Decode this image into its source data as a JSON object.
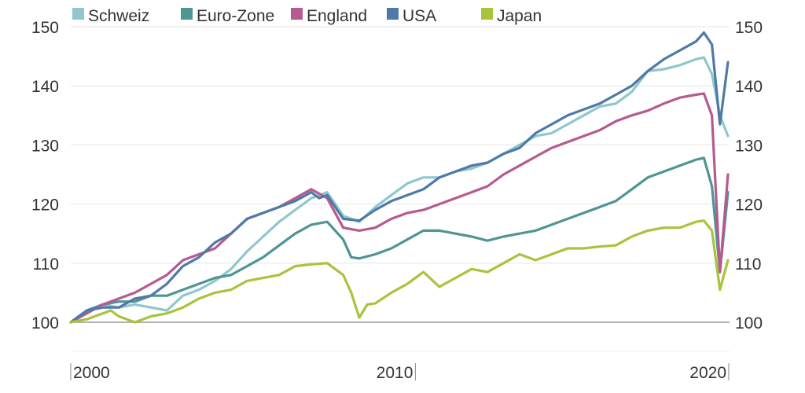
{
  "chart_data": {
    "type": "line",
    "title": "",
    "xlabel": "",
    "ylabel": "",
    "xlim": [
      2000,
      2020.5
    ],
    "ylim": [
      100,
      150
    ],
    "yticks": [
      100,
      110,
      120,
      130,
      140,
      150
    ],
    "xticks": [
      {
        "value": 2000,
        "label": "2000"
      },
      {
        "value": 2010,
        "label": "2010"
      },
      {
        "value": 2020,
        "label": "2020"
      }
    ],
    "grid": true,
    "legend_placement": "top",
    "series": [
      {
        "name": "Schweiz",
        "color": "#8fc7cc",
        "points": [
          [
            2000,
            100
          ],
          [
            2000.5,
            102
          ],
          [
            2001,
            103
          ],
          [
            2001.5,
            102.5
          ],
          [
            2002,
            103
          ],
          [
            2002.5,
            102.5
          ],
          [
            2003,
            102
          ],
          [
            2003.5,
            104.5
          ],
          [
            2004,
            105.5
          ],
          [
            2004.5,
            107
          ],
          [
            2005,
            109
          ],
          [
            2005.5,
            112
          ],
          [
            2006,
            114.5
          ],
          [
            2006.5,
            117
          ],
          [
            2007,
            119
          ],
          [
            2007.5,
            121
          ],
          [
            2008,
            122
          ],
          [
            2008.5,
            118
          ],
          [
            2009,
            117
          ],
          [
            2009.5,
            119.5
          ],
          [
            2010,
            121.5
          ],
          [
            2010.5,
            123.5
          ],
          [
            2011,
            124.5
          ],
          [
            2011.5,
            124.5
          ],
          [
            2012,
            125.5
          ],
          [
            2012.5,
            126
          ],
          [
            2013,
            127
          ],
          [
            2013.5,
            128.5
          ],
          [
            2014,
            130
          ],
          [
            2014.5,
            131.5
          ],
          [
            2015,
            132
          ],
          [
            2015.5,
            133.5
          ],
          [
            2016,
            135
          ],
          [
            2016.5,
            136.5
          ],
          [
            2017,
            137
          ],
          [
            2017.5,
            139
          ],
          [
            2018,
            142.5
          ],
          [
            2018.5,
            142.8
          ],
          [
            2019,
            143.5
          ],
          [
            2019.5,
            144.5
          ],
          [
            2019.75,
            144.8
          ],
          [
            2020,
            142
          ],
          [
            2020.25,
            135
          ],
          [
            2020.5,
            131.5
          ]
        ]
      },
      {
        "name": "Euro-Zone",
        "color": "#4e9593",
        "points": [
          [
            2000,
            100
          ],
          [
            2000.5,
            102
          ],
          [
            2001,
            103
          ],
          [
            2001.5,
            103.5
          ],
          [
            2002,
            103.5
          ],
          [
            2002.5,
            104.5
          ],
          [
            2003,
            104.5
          ],
          [
            2003.5,
            105.5
          ],
          [
            2004,
            106.5
          ],
          [
            2004.5,
            107.5
          ],
          [
            2005,
            108
          ],
          [
            2005.5,
            109.5
          ],
          [
            2006,
            111
          ],
          [
            2006.5,
            113
          ],
          [
            2007,
            115
          ],
          [
            2007.5,
            116.5
          ],
          [
            2008,
            117
          ],
          [
            2008.5,
            114
          ],
          [
            2008.75,
            111
          ],
          [
            2009,
            110.8
          ],
          [
            2009.5,
            111.5
          ],
          [
            2010,
            112.5
          ],
          [
            2010.5,
            114
          ],
          [
            2011,
            115.5
          ],
          [
            2011.5,
            115.5
          ],
          [
            2012,
            115
          ],
          [
            2012.5,
            114.5
          ],
          [
            2013,
            113.8
          ],
          [
            2013.5,
            114.5
          ],
          [
            2014,
            115
          ],
          [
            2014.5,
            115.5
          ],
          [
            2015,
            116.5
          ],
          [
            2015.5,
            117.5
          ],
          [
            2016,
            118.5
          ],
          [
            2016.5,
            119.5
          ],
          [
            2017,
            120.5
          ],
          [
            2017.5,
            122.5
          ],
          [
            2018,
            124.5
          ],
          [
            2018.5,
            125.5
          ],
          [
            2019,
            126.5
          ],
          [
            2019.5,
            127.5
          ],
          [
            2019.75,
            127.8
          ],
          [
            2020,
            123
          ],
          [
            2020.25,
            108.5
          ],
          [
            2020.5,
            122
          ]
        ]
      },
      {
        "name": "England",
        "color": "#b65a8f",
        "points": [
          [
            2000,
            100
          ],
          [
            2000.5,
            101.5
          ],
          [
            2001,
            103
          ],
          [
            2001.5,
            104
          ],
          [
            2002,
            105
          ],
          [
            2002.5,
            106.5
          ],
          [
            2003,
            108
          ],
          [
            2003.5,
            110.5
          ],
          [
            2004,
            111.5
          ],
          [
            2004.5,
            112.5
          ],
          [
            2005,
            115
          ],
          [
            2005.5,
            117.5
          ],
          [
            2006,
            118.5
          ],
          [
            2006.5,
            119.5
          ],
          [
            2007,
            121
          ],
          [
            2007.5,
            122.5
          ],
          [
            2008,
            121
          ],
          [
            2008.5,
            116
          ],
          [
            2009,
            115.5
          ],
          [
            2009.5,
            116
          ],
          [
            2010,
            117.5
          ],
          [
            2010.5,
            118.5
          ],
          [
            2011,
            119
          ],
          [
            2011.5,
            120
          ],
          [
            2012,
            121
          ],
          [
            2012.5,
            122
          ],
          [
            2013,
            123
          ],
          [
            2013.5,
            125
          ],
          [
            2014,
            126.5
          ],
          [
            2014.5,
            128
          ],
          [
            2015,
            129.5
          ],
          [
            2015.5,
            130.5
          ],
          [
            2016,
            131.5
          ],
          [
            2016.5,
            132.5
          ],
          [
            2017,
            134
          ],
          [
            2017.5,
            135
          ],
          [
            2018,
            135.8
          ],
          [
            2018.5,
            137
          ],
          [
            2019,
            138
          ],
          [
            2019.5,
            138.5
          ],
          [
            2019.75,
            138.7
          ],
          [
            2020,
            135
          ],
          [
            2020.25,
            108.5
          ],
          [
            2020.5,
            125
          ]
        ]
      },
      {
        "name": "USA",
        "color": "#4f7aa8",
        "points": [
          [
            2000,
            100
          ],
          [
            2000.5,
            102
          ],
          [
            2001,
            102.5
          ],
          [
            2001.5,
            102.5
          ],
          [
            2002,
            104
          ],
          [
            2002.5,
            104.5
          ],
          [
            2003,
            106.5
          ],
          [
            2003.5,
            109.5
          ],
          [
            2004,
            111
          ],
          [
            2004.5,
            113.5
          ],
          [
            2005,
            115
          ],
          [
            2005.5,
            117.5
          ],
          [
            2006,
            118.5
          ],
          [
            2006.5,
            119.5
          ],
          [
            2007,
            120.5
          ],
          [
            2007.5,
            122
          ],
          [
            2007.75,
            121
          ],
          [
            2008,
            121.5
          ],
          [
            2008.5,
            117.5
          ],
          [
            2009,
            117.2
          ],
          [
            2009.5,
            119
          ],
          [
            2010,
            120.5
          ],
          [
            2010.5,
            121.5
          ],
          [
            2011,
            122.5
          ],
          [
            2011.5,
            124.5
          ],
          [
            2012,
            125.5
          ],
          [
            2012.5,
            126.5
          ],
          [
            2013,
            127
          ],
          [
            2013.5,
            128.5
          ],
          [
            2014,
            129.5
          ],
          [
            2014.5,
            132
          ],
          [
            2015,
            133.5
          ],
          [
            2015.5,
            135
          ],
          [
            2016,
            136
          ],
          [
            2016.5,
            137
          ],
          [
            2017,
            138.5
          ],
          [
            2017.5,
            140
          ],
          [
            2018,
            142.5
          ],
          [
            2018.5,
            144.5
          ],
          [
            2019,
            146
          ],
          [
            2019.5,
            147.5
          ],
          [
            2019.75,
            149
          ],
          [
            2020,
            147
          ],
          [
            2020.25,
            133.5
          ],
          [
            2020.5,
            144
          ]
        ]
      },
      {
        "name": "Japan",
        "color": "#a8c43c",
        "points": [
          [
            2000,
            100
          ],
          [
            2000.5,
            100.5
          ],
          [
            2001,
            101.5
          ],
          [
            2001.25,
            102
          ],
          [
            2001.5,
            101
          ],
          [
            2002,
            100
          ],
          [
            2002.5,
            101
          ],
          [
            2003,
            101.5
          ],
          [
            2003.5,
            102.5
          ],
          [
            2004,
            104
          ],
          [
            2004.5,
            105
          ],
          [
            2005,
            105.5
          ],
          [
            2005.5,
            107
          ],
          [
            2006,
            107.5
          ],
          [
            2006.5,
            108
          ],
          [
            2007,
            109.5
          ],
          [
            2007.5,
            109.8
          ],
          [
            2008,
            110
          ],
          [
            2008.5,
            108
          ],
          [
            2008.75,
            105
          ],
          [
            2009,
            100.8
          ],
          [
            2009.25,
            103
          ],
          [
            2009.5,
            103.2
          ],
          [
            2010,
            105
          ],
          [
            2010.5,
            106.5
          ],
          [
            2011,
            108.5
          ],
          [
            2011.5,
            106
          ],
          [
            2012,
            107.5
          ],
          [
            2012.5,
            109
          ],
          [
            2013,
            108.5
          ],
          [
            2013.5,
            110
          ],
          [
            2014,
            111.5
          ],
          [
            2014.5,
            110.5
          ],
          [
            2015,
            111.5
          ],
          [
            2015.5,
            112.5
          ],
          [
            2016,
            112.5
          ],
          [
            2016.5,
            112.8
          ],
          [
            2017,
            113
          ],
          [
            2017.5,
            114.5
          ],
          [
            2018,
            115.5
          ],
          [
            2018.5,
            116
          ],
          [
            2019,
            116
          ],
          [
            2019.5,
            117
          ],
          [
            2019.75,
            117.2
          ],
          [
            2020,
            115.5
          ],
          [
            2020.25,
            105.5
          ],
          [
            2020.5,
            110.5
          ]
        ]
      }
    ]
  }
}
